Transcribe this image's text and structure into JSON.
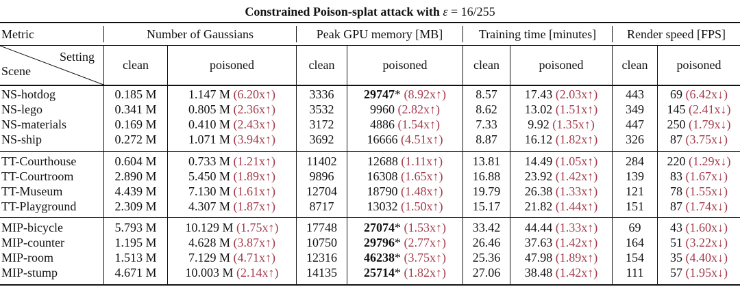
{
  "caption": {
    "prefix": "Constrained Poison-splat attack with ",
    "epsilon": "ε",
    "equals": " = 16/255"
  },
  "header": {
    "metric": "Metric",
    "groups": [
      "Number of Gaussians",
      "Peak GPU memory [MB]",
      "Training time [minutes]",
      "Render speed [FPS]"
    ],
    "setting": "Setting",
    "scene": "Scene",
    "clean": "clean",
    "poisoned": "poisoned"
  },
  "row_groups": [
    [
      {
        "scene": "NS-hotdog",
        "gauss": {
          "clean": "0.185 M",
          "pois": "1.147 M",
          "ratio": "(6.20x↑)"
        },
        "mem": {
          "clean": "3336",
          "pois": "29747",
          "bold": true,
          "star": "*",
          "ratio": "(8.92x↑)"
        },
        "time": {
          "clean": "8.57",
          "pois": "17.43",
          "ratio": "(2.03x↑)"
        },
        "fps": {
          "clean": "443",
          "pois": "69",
          "ratio": "(6.42x↓)"
        }
      },
      {
        "scene": "NS-lego",
        "gauss": {
          "clean": "0.341 M",
          "pois": "0.805 M",
          "ratio": "(2.36x↑)"
        },
        "mem": {
          "clean": "3532",
          "pois": "9960",
          "bold": false,
          "star": "",
          "ratio": "(2.82x↑)"
        },
        "time": {
          "clean": "8.62",
          "pois": "13.02",
          "ratio": "(1.51x↑)"
        },
        "fps": {
          "clean": "349",
          "pois": "145",
          "ratio": "(2.41x↓)"
        }
      },
      {
        "scene": "NS-materials",
        "gauss": {
          "clean": "0.169 M",
          "pois": "0.410 M",
          "ratio": "(2.43x↑)"
        },
        "mem": {
          "clean": "3172",
          "pois": "4886",
          "bold": false,
          "star": "",
          "ratio": "(1.54x↑)"
        },
        "time": {
          "clean": "7.33",
          "pois": "9.92",
          "ratio": "(1.35x↑)"
        },
        "fps": {
          "clean": "447",
          "pois": "250",
          "ratio": "(1.79x↓)"
        }
      },
      {
        "scene": "NS-ship",
        "gauss": {
          "clean": "0.272 M",
          "pois": "1.071 M",
          "ratio": "(3.94x↑)"
        },
        "mem": {
          "clean": "3692",
          "pois": "16666",
          "bold": false,
          "star": "",
          "ratio": "(4.51x↑)"
        },
        "time": {
          "clean": "8.87",
          "pois": "16.12",
          "ratio": "(1.82x↑)"
        },
        "fps": {
          "clean": "326",
          "pois": "87",
          "ratio": "(3.75x↓)"
        }
      }
    ],
    [
      {
        "scene": "TT-Courthouse",
        "gauss": {
          "clean": "0.604 M",
          "pois": "0.733 M",
          "ratio": "(1.21x↑)"
        },
        "mem": {
          "clean": "11402",
          "pois": "12688",
          "bold": false,
          "star": "",
          "ratio": "(1.11x↑)"
        },
        "time": {
          "clean": "13.81",
          "pois": "14.49",
          "ratio": "(1.05x↑)"
        },
        "fps": {
          "clean": "284",
          "pois": "220",
          "ratio": "(1.29x↓)"
        }
      },
      {
        "scene": "TT-Courtroom",
        "gauss": {
          "clean": "2.890 M",
          "pois": "5.450 M",
          "ratio": "(1.89x↑)"
        },
        "mem": {
          "clean": "9896",
          "pois": "16308",
          "bold": false,
          "star": "",
          "ratio": "(1.65x↑)"
        },
        "time": {
          "clean": "16.88",
          "pois": "23.92",
          "ratio": "(1.42x↑)"
        },
        "fps": {
          "clean": "139",
          "pois": "83",
          "ratio": "(1.67x↓)"
        }
      },
      {
        "scene": "TT-Museum",
        "gauss": {
          "clean": "4.439 M",
          "pois": "7.130 M",
          "ratio": "(1.61x↑)"
        },
        "mem": {
          "clean": "12704",
          "pois": "18790",
          "bold": false,
          "star": "",
          "ratio": "(1.48x↑)"
        },
        "time": {
          "clean": "19.79",
          "pois": "26.38",
          "ratio": "(1.33x↑)"
        },
        "fps": {
          "clean": "121",
          "pois": "78",
          "ratio": "(1.55x↓)"
        }
      },
      {
        "scene": "TT-Playground",
        "gauss": {
          "clean": "2.309 M",
          "pois": "4.307 M",
          "ratio": "(1.87x↑)"
        },
        "mem": {
          "clean": "8717",
          "pois": "13032",
          "bold": false,
          "star": "",
          "ratio": "(1.50x↑)"
        },
        "time": {
          "clean": "15.17",
          "pois": "21.82",
          "ratio": "(1.44x↑)"
        },
        "fps": {
          "clean": "151",
          "pois": "87",
          "ratio": "(1.74x↓)"
        }
      }
    ],
    [
      {
        "scene": "MIP-bicycle",
        "gauss": {
          "clean": "5.793 M",
          "pois": "10.129 M",
          "ratio": "(1.75x↑)"
        },
        "mem": {
          "clean": "17748",
          "pois": "27074",
          "bold": true,
          "star": "*",
          "ratio": "(1.53x↑)"
        },
        "time": {
          "clean": "33.42",
          "pois": "44.44",
          "ratio": "(1.33x↑)"
        },
        "fps": {
          "clean": "69",
          "pois": "43",
          "ratio": "(1.60x↓)"
        }
      },
      {
        "scene": "MIP-counter",
        "gauss": {
          "clean": "1.195 M",
          "pois": "4.628 M",
          "ratio": "(3.87x↑)"
        },
        "mem": {
          "clean": "10750",
          "pois": "29796",
          "bold": true,
          "star": "*",
          "ratio": "(2.77x↑)"
        },
        "time": {
          "clean": "26.46",
          "pois": "37.63",
          "ratio": "(1.42x↑)"
        },
        "fps": {
          "clean": "164",
          "pois": "51",
          "ratio": "(3.22x↓)"
        }
      },
      {
        "scene": "MIP-room",
        "gauss": {
          "clean": "1.513 M",
          "pois": "7.129 M",
          "ratio": "(4.71x↑)"
        },
        "mem": {
          "clean": "12316",
          "pois": "46238",
          "bold": true,
          "star": "*",
          "ratio": "(3.75x↑)"
        },
        "time": {
          "clean": "25.36",
          "pois": "47.98",
          "ratio": "(1.89x↑)"
        },
        "fps": {
          "clean": "154",
          "pois": "35",
          "ratio": "(4.40x↓)"
        }
      },
      {
        "scene": "MIP-stump",
        "gauss": {
          "clean": "4.671 M",
          "pois": "10.003 M",
          "ratio": "(2.14x↑)"
        },
        "mem": {
          "clean": "14135",
          "pois": "25714",
          "bold": true,
          "star": "*",
          "ratio": "(1.82x↑)"
        },
        "time": {
          "clean": "27.06",
          "pois": "38.48",
          "ratio": "(1.42x↑)"
        },
        "fps": {
          "clean": "111",
          "pois": "57",
          "ratio": "(1.95x↓)"
        }
      }
    ]
  ],
  "colors": {
    "ratio": "#a33a4a",
    "text": "#111111",
    "rule": "#111111"
  }
}
